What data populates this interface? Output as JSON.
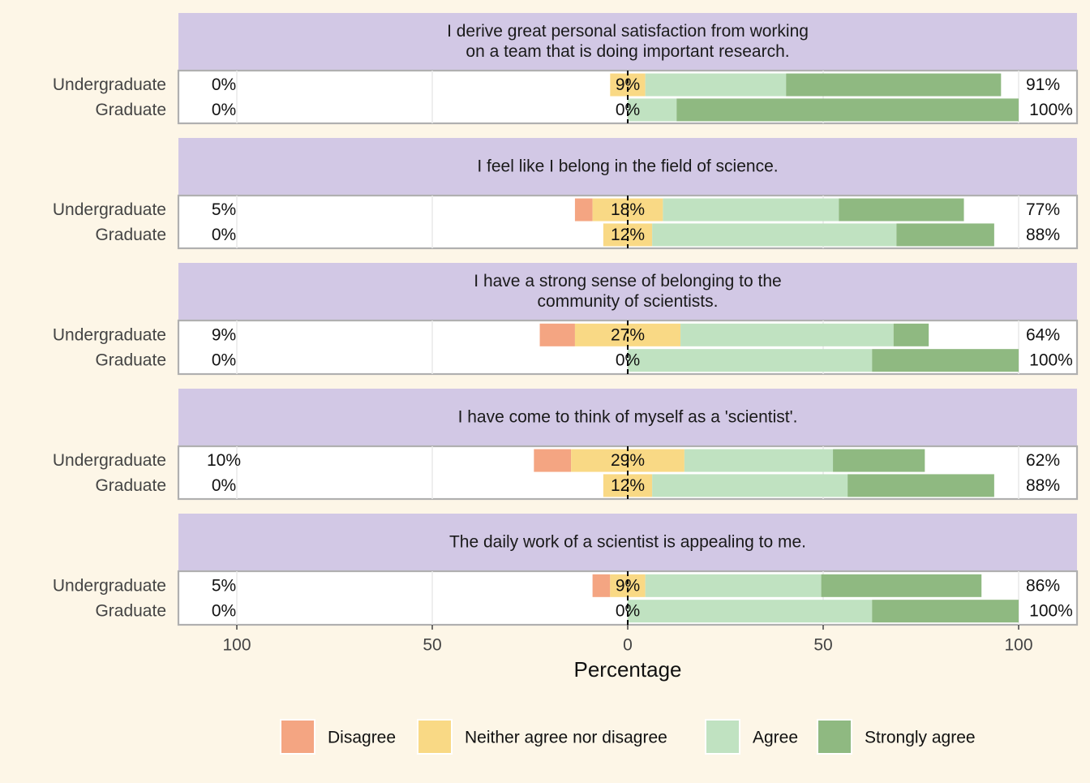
{
  "chart_data": {
    "type": "bar",
    "subtype": "diverging-stacked-likert",
    "xlabel": "Percentage",
    "xlim": [
      -100,
      100
    ],
    "xticks": [
      -100,
      -50,
      0,
      50,
      100
    ],
    "xtick_labels": [
      "100",
      "50",
      "0",
      "50",
      "100"
    ],
    "grid": true,
    "legend_position": "bottom",
    "categories": [
      "Undergraduate",
      "Graduate"
    ],
    "levels": [
      "Disagree",
      "Neither agree nor disagree",
      "Agree",
      "Strongly agree"
    ],
    "colors": {
      "Disagree": "#f4a582",
      "Neither agree nor disagree": "#f9d985",
      "Agree": "#c0e2c1",
      "Strongly agree": "#8fb981",
      "strip": "#d2c8e5",
      "background": "#fdf6e7",
      "panel": "#ffffff",
      "panel_border": "#b0b0b0"
    },
    "panels": [
      {
        "title": "I derive great personal satisfaction from working\non a team that is doing important research.",
        "rows": [
          {
            "group": "Undergraduate",
            "values": {
              "Disagree": 0,
              "Neither agree nor disagree": 9,
              "Agree": 36,
              "Strongly agree": 55
            },
            "labels": {
              "low": "0%",
              "neutral": "9%",
              "high": "91%"
            }
          },
          {
            "group": "Graduate",
            "values": {
              "Disagree": 0,
              "Neither agree nor disagree": 0,
              "Agree": 12.5,
              "Strongly agree": 87.5
            },
            "labels": {
              "low": "0%",
              "neutral": "0%",
              "high": "100%"
            }
          }
        ]
      },
      {
        "title": "I feel like I belong in the field of science.",
        "rows": [
          {
            "group": "Undergraduate",
            "values": {
              "Disagree": 4.5,
              "Neither agree nor disagree": 18,
              "Agree": 45,
              "Strongly agree": 32
            },
            "labels": {
              "low": "5%",
              "neutral": "18%",
              "high": "77%"
            }
          },
          {
            "group": "Graduate",
            "values": {
              "Disagree": 0,
              "Neither agree nor disagree": 12.5,
              "Agree": 62.5,
              "Strongly agree": 25
            },
            "labels": {
              "low": "0%",
              "neutral": "12%",
              "high": "88%"
            }
          }
        ]
      },
      {
        "title": "I have a strong sense of belonging to the\ncommunity of scientists.",
        "rows": [
          {
            "group": "Undergraduate",
            "values": {
              "Disagree": 9,
              "Neither agree nor disagree": 27,
              "Agree": 54.5,
              "Strongly agree": 9
            },
            "labels": {
              "low": "9%",
              "neutral": "27%",
              "high": "64%"
            }
          },
          {
            "group": "Graduate",
            "values": {
              "Disagree": 0,
              "Neither agree nor disagree": 0,
              "Agree": 62.5,
              "Strongly agree": 37.5
            },
            "labels": {
              "low": "0%",
              "neutral": "0%",
              "high": "100%"
            }
          }
        ]
      },
      {
        "title": "I have come to think of myself as a 'scientist'.",
        "rows": [
          {
            "group": "Undergraduate",
            "values": {
              "Disagree": 9.5,
              "Neither agree nor disagree": 29,
              "Agree": 38,
              "Strongly agree": 23.5
            },
            "labels": {
              "low": "10%",
              "neutral": "29%",
              "high": "62%"
            }
          },
          {
            "group": "Graduate",
            "values": {
              "Disagree": 0,
              "Neither agree nor disagree": 12.5,
              "Agree": 50,
              "Strongly agree": 37.5
            },
            "labels": {
              "low": "0%",
              "neutral": "12%",
              "high": "88%"
            }
          }
        ]
      },
      {
        "title": "The daily work of a scientist is appealing to me.",
        "rows": [
          {
            "group": "Undergraduate",
            "values": {
              "Disagree": 4.5,
              "Neither agree nor disagree": 9,
              "Agree": 45,
              "Strongly agree": 41
            },
            "labels": {
              "low": "5%",
              "neutral": "9%",
              "high": "86%"
            }
          },
          {
            "group": "Graduate",
            "values": {
              "Disagree": 0,
              "Neither agree nor disagree": 0,
              "Agree": 62.5,
              "Strongly agree": 37.5
            },
            "labels": {
              "low": "0%",
              "neutral": "0%",
              "high": "100%"
            }
          }
        ]
      }
    ]
  }
}
